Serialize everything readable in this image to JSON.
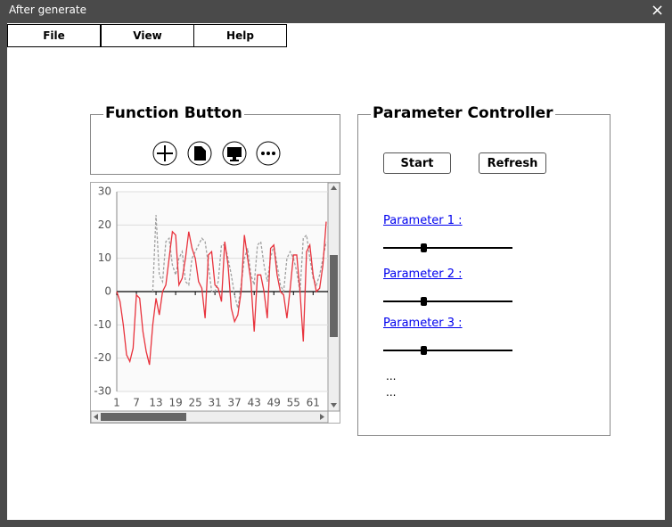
{
  "window": {
    "title": "After generate",
    "close": "×"
  },
  "menu": [
    "File",
    "View",
    "Help"
  ],
  "function_panel": {
    "title": "Function Button"
  },
  "parameter_panel": {
    "title": "Parameter Controller",
    "buttons": [
      "Start",
      "Refresh"
    ],
    "parameters": [
      "Parameter 1 :",
      "Parameter 2 :",
      "Parameter 3 :"
    ],
    "more": [
      "...",
      "..."
    ]
  },
  "chart_data": {
    "type": "line",
    "x": [
      1,
      2,
      3,
      4,
      5,
      6,
      7,
      8,
      9,
      10,
      11,
      12,
      13,
      14,
      15,
      16,
      17,
      18,
      19,
      20,
      21,
      22,
      23,
      24,
      25,
      26,
      27,
      28,
      29,
      30,
      31,
      32,
      33,
      34,
      35,
      36,
      37,
      38,
      39,
      40,
      41,
      42,
      43,
      44,
      45,
      46,
      47,
      48,
      49,
      50,
      51,
      52,
      53,
      54,
      55,
      56,
      57,
      58,
      59,
      60,
      61,
      62,
      63,
      64,
      65
    ],
    "series": [
      {
        "color": "#e8323c",
        "dash": false,
        "values": [
          0,
          -3,
          -10,
          -19,
          -21,
          -17,
          -1,
          -2,
          -12,
          -18,
          -22,
          -10,
          -2,
          -7,
          0,
          2,
          10,
          18,
          17,
          2,
          4,
          10,
          18,
          13,
          10,
          3,
          1,
          -8,
          11,
          12,
          2,
          1,
          -3,
          15,
          8,
          -5,
          -9,
          -7,
          0,
          17,
          10,
          3,
          -12,
          5,
          5,
          0,
          -8,
          13,
          14,
          5,
          0,
          -1,
          -8,
          1,
          11,
          11,
          0,
          -15,
          12,
          14,
          5,
          0,
          1,
          8,
          21
        ]
      },
      {
        "color": "#a0a0a0",
        "dash": true,
        "values": [
          null,
          null,
          null,
          null,
          null,
          null,
          null,
          null,
          null,
          null,
          null,
          0,
          23,
          5,
          3,
          15,
          16,
          8,
          5,
          10,
          12,
          3,
          2,
          10,
          12,
          14,
          16,
          15,
          8,
          0,
          0,
          3,
          14,
          14,
          10,
          5,
          -1,
          -5,
          2,
          10,
          13,
          5,
          2,
          14,
          15,
          8,
          3,
          10,
          14,
          8,
          2,
          0,
          10,
          12,
          10,
          6,
          0,
          16,
          17,
          10,
          4,
          2,
          5,
          10,
          15
        ]
      }
    ],
    "xlim": [
      1,
      65
    ],
    "xticks": [
      1,
      7,
      13,
      19,
      25,
      31,
      37,
      43,
      49,
      55,
      61
    ],
    "ylim": [
      -30,
      30
    ],
    "yticks": [
      -30,
      -20,
      -10,
      0,
      10,
      20,
      30
    ],
    "grid": true
  }
}
